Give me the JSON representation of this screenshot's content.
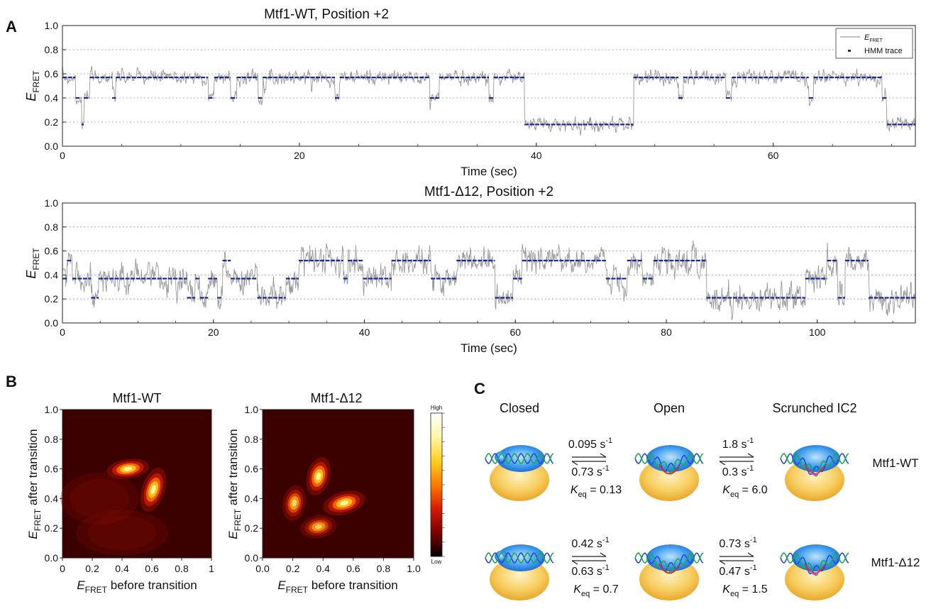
{
  "panel_letters": {
    "a": "A",
    "b": "B",
    "c": "C"
  },
  "panel_a": {
    "legend": {
      "trace_label_main": "E",
      "trace_label_sub": "FRET",
      "hmm_label": "HMM trace"
    },
    "colors": {
      "raw": "#9a9a9a",
      "hmm": "#1c2a8c",
      "grid": "#9a9a9a"
    }
  },
  "panel_b": {
    "colorbar": {
      "high": "High",
      "low": "Low",
      "stops": [
        "#ffffff",
        "#fff7a8",
        "#ffd020",
        "#ff7a00",
        "#d41c00",
        "#7a0000",
        "#000000"
      ]
    },
    "axis_label_x_pre": "E",
    "axis_label_x_sub": "FRET",
    "axis_label_x_post": " before transition",
    "axis_label_y_pre": "E",
    "axis_label_y_sub": "FRET",
    "axis_label_y_post": " after transition"
  },
  "panel_c": {
    "states": [
      "Closed",
      "Open",
      "Scrunched IC2"
    ],
    "rows": [
      {
        "name": "Mtf1-WT",
        "k1_fwd": "0.095 s",
        "k1_rev": "0.73 s",
        "k1_keq": " = 0.13",
        "k2_fwd": "1.8 s",
        "k2_rev": "0.3 s",
        "k2_keq": " = 6.0"
      },
      {
        "name": "Mtf1-Δ12",
        "k1_fwd": "0.42 s",
        "k1_rev": "0.63 s",
        "k1_keq": " = 0.7",
        "k2_fwd": "0.73 s",
        "k2_rev": "0.47 s",
        "k2_keq": " = 1.5"
      }
    ],
    "rate_unit_sup": "-1",
    "keq_main": "K",
    "keq_sub": "eq"
  },
  "chart_data": [
    {
      "type": "line",
      "title": "Mtf1-WT, Position +2",
      "xlabel": "Time (sec)",
      "ylabel": "E_FRET",
      "ylabel_main": "E",
      "ylabel_sub": "FRET",
      "xlim": [
        0,
        72
      ],
      "ylim": [
        0.0,
        1.0
      ],
      "xticks": [
        0,
        20,
        40,
        60
      ],
      "xtick_labels": [
        "0",
        "20",
        "40",
        "60"
      ],
      "yticks": [
        0.0,
        0.2,
        0.4,
        0.6,
        0.8,
        1.0
      ],
      "ytick_labels": [
        "0.0",
        "0.2",
        "0.4",
        "0.6",
        "0.8",
        "1.0"
      ],
      "grid": "horizontal dotted",
      "legend": "top-right",
      "levels": [
        0.18,
        0.4,
        0.57
      ],
      "series": [
        {
          "name": "E_FRET",
          "kind": "raw_trace",
          "noise": 0.035,
          "x": [
            0,
            1,
            1.5,
            2,
            2.4,
            4,
            4.3,
            12,
            12.3,
            17,
            17.4,
            31,
            31.5,
            38.8,
            39.2,
            48,
            48.5,
            69,
            69.5,
            72
          ],
          "y": [
            0.57,
            0.57,
            0.4,
            0.4,
            0.57,
            0.57,
            0.45,
            0.5,
            0.57,
            0.57,
            0.62,
            0.57,
            0.5,
            0.55,
            0.18,
            0.18,
            0.57,
            0.57,
            0.18,
            0.18
          ]
        },
        {
          "name": "HMM trace",
          "kind": "step",
          "segments": [
            [
              0,
              1.1,
              0.57
            ],
            [
              1.1,
              1.6,
              0.4
            ],
            [
              1.6,
              1.8,
              0.18
            ],
            [
              1.8,
              2.3,
              0.4
            ],
            [
              2.3,
              4.2,
              0.57
            ],
            [
              4.2,
              4.5,
              0.4
            ],
            [
              4.5,
              12.3,
              0.57
            ],
            [
              12.3,
              12.8,
              0.4
            ],
            [
              12.8,
              14.2,
              0.57
            ],
            [
              14.2,
              14.7,
              0.4
            ],
            [
              14.7,
              16.5,
              0.57
            ],
            [
              16.5,
              16.9,
              0.4
            ],
            [
              16.9,
              23,
              0.57
            ],
            [
              23,
              23.4,
              0.4
            ],
            [
              23.4,
              31,
              0.57
            ],
            [
              31,
              31.8,
              0.4
            ],
            [
              31.8,
              36,
              0.57
            ],
            [
              36,
              36.4,
              0.4
            ],
            [
              36.4,
              39,
              0.57
            ],
            [
              39,
              48.2,
              0.18
            ],
            [
              48.2,
              52,
              0.57
            ],
            [
              52,
              52.4,
              0.4
            ],
            [
              52.4,
              56,
              0.57
            ],
            [
              56,
              56.5,
              0.4
            ],
            [
              56.5,
              63,
              0.57
            ],
            [
              63,
              63.4,
              0.4
            ],
            [
              63.4,
              69.2,
              0.57
            ],
            [
              69.2,
              69.6,
              0.4
            ],
            [
              69.6,
              72,
              0.18
            ]
          ]
        }
      ]
    },
    {
      "type": "line",
      "title": "Mtf1-Δ12, Position +2",
      "xlabel": "Time (sec)",
      "ylabel": "E_FRET",
      "ylabel_main": "E",
      "ylabel_sub": "FRET",
      "xlim": [
        0,
        113
      ],
      "ylim": [
        0.0,
        1.0
      ],
      "xticks": [
        0,
        20,
        40,
        60,
        80,
        100
      ],
      "xtick_labels": [
        "0",
        "20",
        "40",
        "60",
        "80",
        "100"
      ],
      "yticks": [
        0.0,
        0.2,
        0.4,
        0.6,
        0.8,
        1.0
      ],
      "ytick_labels": [
        "0.0",
        "0.2",
        "0.4",
        "0.6",
        "0.8",
        "1.0"
      ],
      "grid": "horizontal dotted",
      "levels": [
        0.21,
        0.37,
        0.52
      ],
      "series": [
        {
          "name": "E_FRET",
          "kind": "raw_trace",
          "noise": 0.07,
          "x": [
            0,
            113
          ],
          "y": [
            0.37,
            0.37
          ]
        },
        {
          "name": "HMM trace",
          "kind": "step",
          "segments": [
            [
              0,
              0.6,
              0.37
            ],
            [
              0.6,
              1.3,
              0.52
            ],
            [
              1.3,
              3.8,
              0.37
            ],
            [
              3.8,
              4.8,
              0.21
            ],
            [
              4.8,
              16.5,
              0.37
            ],
            [
              16.5,
              17.6,
              0.21
            ],
            [
              17.6,
              18.2,
              0.37
            ],
            [
              18.2,
              19.3,
              0.21
            ],
            [
              19.3,
              20.5,
              0.37
            ],
            [
              20.5,
              21.2,
              0.21
            ],
            [
              21.2,
              22.3,
              0.52
            ],
            [
              22.3,
              25.8,
              0.37
            ],
            [
              25.8,
              29.6,
              0.21
            ],
            [
              29.6,
              31.3,
              0.37
            ],
            [
              31.3,
              37.2,
              0.52
            ],
            [
              37.2,
              37.8,
              0.37
            ],
            [
              37.8,
              39.8,
              0.52
            ],
            [
              39.8,
              43.6,
              0.37
            ],
            [
              43.6,
              48.8,
              0.52
            ],
            [
              48.8,
              52.2,
              0.37
            ],
            [
              52.2,
              57.3,
              0.52
            ],
            [
              57.3,
              59.7,
              0.21
            ],
            [
              59.7,
              60.9,
              0.37
            ],
            [
              60.9,
              72.0,
              0.52
            ],
            [
              72.0,
              74.8,
              0.37
            ],
            [
              74.8,
              76.9,
              0.52
            ],
            [
              76.9,
              78.3,
              0.37
            ],
            [
              78.3,
              85.3,
              0.52
            ],
            [
              85.3,
              98.4,
              0.21
            ],
            [
              98.4,
              101.3,
              0.37
            ],
            [
              101.3,
              102.7,
              0.52
            ],
            [
              102.7,
              103.7,
              0.21
            ],
            [
              103.7,
              106.8,
              0.52
            ],
            [
              106.8,
              113,
              0.21
            ]
          ]
        }
      ]
    },
    {
      "type": "heatmap",
      "title": "Mtf1-WT",
      "xlabel": "E_FRET before transition",
      "ylabel": "E_FRET after transition",
      "xlim": [
        0,
        1
      ],
      "ylim": [
        0,
        1
      ],
      "xticks": [
        0,
        0.2,
        0.4,
        0.6,
        0.8,
        1
      ],
      "xtick_labels": [
        "0",
        "0.2",
        "0.4",
        "0.6",
        "0.8",
        "1"
      ],
      "yticks": [
        0.0,
        0.2,
        0.4,
        0.6,
        0.8,
        1.0
      ],
      "ytick_labels": [
        "0.0",
        "0.2",
        "0.4",
        "0.6",
        "0.8",
        "1.0"
      ],
      "peaks": [
        {
          "x": 0.44,
          "y": 0.6,
          "sx": 0.065,
          "sy": 0.03,
          "rot": -8,
          "amp": 1.0
        },
        {
          "x": 0.61,
          "y": 0.46,
          "sx": 0.035,
          "sy": 0.07,
          "rot": 18,
          "amp": 0.95
        },
        {
          "x": 0.25,
          "y": 0.4,
          "sx": 0.12,
          "sy": 0.08,
          "rot": 0,
          "amp": 0.12
        },
        {
          "x": 0.4,
          "y": 0.17,
          "sx": 0.14,
          "sy": 0.07,
          "rot": 0,
          "amp": 0.12
        }
      ]
    },
    {
      "type": "heatmap",
      "title": "Mtf1-Δ12",
      "xlabel": "E_FRET before transition",
      "ylabel": "E_FRET after transition",
      "xlim": [
        0,
        1
      ],
      "ylim": [
        0,
        1
      ],
      "xticks": [
        0.0,
        0.2,
        0.4,
        0.6,
        0.8,
        1.0
      ],
      "xtick_labels": [
        "0.0",
        "0.2",
        "0.4",
        "0.6",
        "0.8",
        "1.0"
      ],
      "yticks": [
        0.0,
        0.2,
        0.4,
        0.6,
        0.8,
        1.0
      ],
      "ytick_labels": [
        "0.0",
        "0.2",
        "0.4",
        "0.6",
        "0.8",
        "1.0"
      ],
      "colorbar_ticks": [
        "High",
        "Low"
      ],
      "peaks": [
        {
          "x": 0.37,
          "y": 0.55,
          "sx": 0.035,
          "sy": 0.06,
          "rot": 15,
          "amp": 0.95
        },
        {
          "x": 0.54,
          "y": 0.37,
          "sx": 0.065,
          "sy": 0.035,
          "rot": -15,
          "amp": 0.95
        },
        {
          "x": 0.21,
          "y": 0.37,
          "sx": 0.035,
          "sy": 0.055,
          "rot": 10,
          "amp": 0.65
        },
        {
          "x": 0.37,
          "y": 0.21,
          "sx": 0.055,
          "sy": 0.035,
          "rot": -10,
          "amp": 0.6
        }
      ]
    }
  ]
}
